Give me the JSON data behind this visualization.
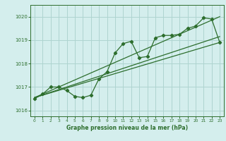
{
  "background_color": "#d4eeed",
  "grid_color": "#aed4d0",
  "line_color": "#2d6e2d",
  "text_color": "#2d6e2d",
  "xlabel": "Graphe pression niveau de la mer (hPa)",
  "ylim": [
    1015.75,
    1020.5
  ],
  "xlim": [
    -0.5,
    23.5
  ],
  "yticks": [
    1016,
    1017,
    1018,
    1019,
    1020
  ],
  "xticks": [
    0,
    1,
    2,
    3,
    4,
    5,
    6,
    7,
    8,
    9,
    10,
    11,
    12,
    13,
    14,
    15,
    16,
    17,
    18,
    19,
    20,
    21,
    22,
    23
  ],
  "main_series": [
    1016.5,
    1016.7,
    1017.0,
    1017.0,
    1016.85,
    1016.6,
    1016.55,
    1016.65,
    1017.35,
    1017.65,
    1018.45,
    1018.85,
    1018.95,
    1018.25,
    1018.3,
    1019.1,
    1019.2,
    1019.2,
    1019.25,
    1019.5,
    1019.6,
    1019.95,
    1019.9,
    1018.9
  ],
  "trend_lines": [
    [
      1016.55,
      1018.9
    ],
    [
      1016.55,
      1020.0
    ],
    [
      1016.55,
      1019.15
    ]
  ]
}
